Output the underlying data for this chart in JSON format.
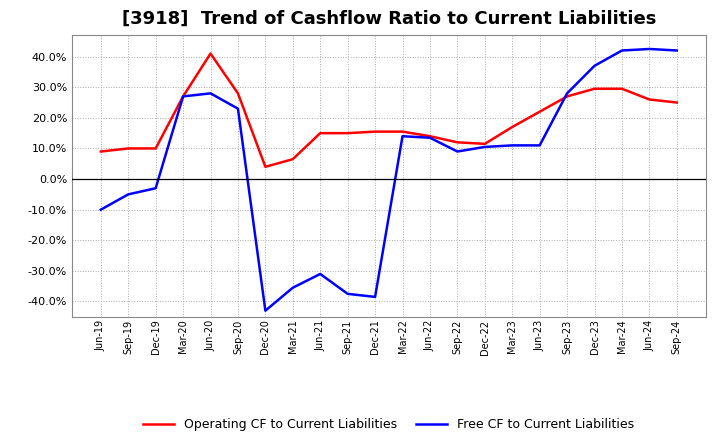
{
  "title": "[3918]  Trend of Cashflow Ratio to Current Liabilities",
  "x_labels": [
    "Jun-19",
    "Sep-19",
    "Dec-19",
    "Mar-20",
    "Jun-20",
    "Sep-20",
    "Dec-20",
    "Mar-21",
    "Jun-21",
    "Sep-21",
    "Dec-21",
    "Mar-22",
    "Jun-22",
    "Sep-22",
    "Dec-22",
    "Mar-23",
    "Jun-23",
    "Sep-23",
    "Dec-23",
    "Mar-24",
    "Jun-24",
    "Sep-24"
  ],
  "operating_cf": [
    9.0,
    10.0,
    10.0,
    27.0,
    41.0,
    28.0,
    4.0,
    6.5,
    15.0,
    15.0,
    15.5,
    15.5,
    14.0,
    12.0,
    11.5,
    17.0,
    22.0,
    27.0,
    29.5,
    29.5,
    26.0,
    25.0
  ],
  "free_cf": [
    -10.0,
    -5.0,
    -3.0,
    27.0,
    28.0,
    23.0,
    -43.0,
    -35.5,
    -31.0,
    -37.5,
    -38.5,
    14.0,
    13.5,
    9.0,
    10.5,
    11.0,
    11.0,
    28.0,
    37.0,
    42.0,
    42.5,
    42.0
  ],
  "operating_color": "#ff0000",
  "free_color": "#0000ff",
  "ylim": [
    -45,
    47
  ],
  "yticks": [
    -40,
    -30,
    -20,
    -10,
    0,
    10,
    20,
    30,
    40
  ],
  "background_color": "#ffffff",
  "grid_color": "#aaaaaa",
  "title_fontsize": 13,
  "legend_labels": [
    "Operating CF to Current Liabilities",
    "Free CF to Current Liabilities"
  ]
}
